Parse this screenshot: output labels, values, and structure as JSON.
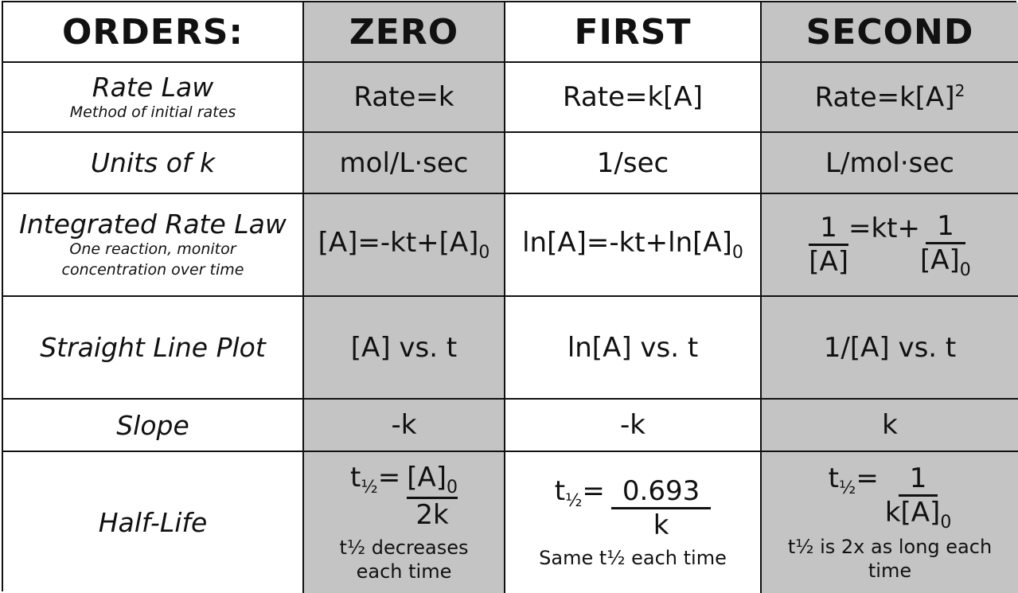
{
  "headers": {
    "orders": "ORDERS:",
    "zero": "ZERO",
    "first": "FIRST",
    "second": "SECOND"
  },
  "rate_law": {
    "label": "Rate Law",
    "sub": "Method of initial rates",
    "zero": "Rate=k",
    "first": "Rate=k[A]",
    "second_base": "Rate=k[A]",
    "second_exp": "2"
  },
  "units_k": {
    "label_text": "Units of",
    "label_var": "k",
    "zero": "mol/L·sec",
    "first": "1/sec",
    "second": "L/mol·sec"
  },
  "integrated": {
    "label": "Integrated Rate Law",
    "sub1": "One reaction, monitor",
    "sub2": "concentration over time",
    "zero_main": "[A]=-kt+[A]",
    "zero_sub": "0",
    "first_main": "ln[A]=-kt+ln[A]",
    "first_sub": "0",
    "second_num1": "1",
    "second_den1": "[A]",
    "second_mid": "=kt+",
    "second_num2": "1",
    "second_den2": "[A]",
    "second_den2_sub": "0"
  },
  "plot": {
    "label": "Straight Line Plot",
    "zero": "[A] vs. t",
    "first": "ln[A] vs. t",
    "second": "1/[A] vs. t"
  },
  "slope": {
    "label": "Slope",
    "zero": "-k",
    "first": "-k",
    "second": "k"
  },
  "half_life": {
    "label": "Half-Life",
    "t": "t",
    "half": "½",
    "eq": "=",
    "zero_num": "[A]",
    "zero_num_sub": "0",
    "zero_den": "2k",
    "zero_note1": "t½ decreases",
    "zero_note2": "each time",
    "first_num": "0.693",
    "first_den": "k",
    "first_note": "Same t½ each time",
    "second_num": "1",
    "second_den": "k[A]",
    "second_den_sub": "0",
    "second_note1": "t½ is 2x as long each",
    "second_note2": "time"
  },
  "colors": {
    "gray_cell": "#c4c4c4",
    "white_cell": "#ffffff",
    "border": "#111111"
  }
}
